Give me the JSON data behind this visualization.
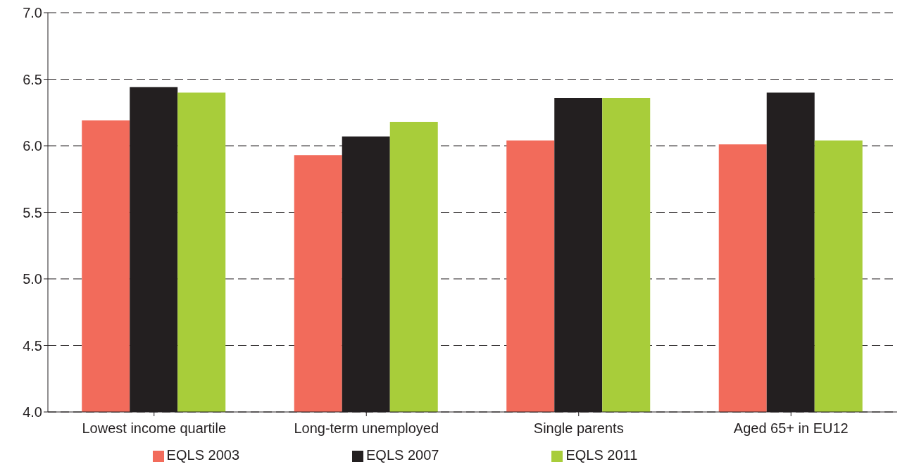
{
  "chart_data": {
    "type": "bar",
    "categories": [
      "Lowest income quartile",
      "Long-term unemployed",
      "Single parents",
      "Aged 65+ in EU12"
    ],
    "series": [
      {
        "name": "EQLS 2003",
        "color": "#f26b5b",
        "values": [
          6.19,
          5.93,
          6.04,
          6.01
        ]
      },
      {
        "name": "EQLS 2007",
        "color": "#231f20",
        "values": [
          6.44,
          6.07,
          6.36,
          6.4
        ]
      },
      {
        "name": "EQLS 2011",
        "color": "#a8cd3a",
        "values": [
          6.4,
          6.18,
          6.36,
          6.04
        ]
      }
    ],
    "ylim": [
      4,
      7
    ],
    "yticks": [
      {
        "value": 4,
        "label": "4.0"
      },
      {
        "value": 4.5,
        "label": "4.5"
      },
      {
        "value": 5,
        "label": "5.0"
      },
      {
        "value": 5.5,
        "label": "5.5"
      },
      {
        "value": 6,
        "label": "6.0"
      },
      {
        "value": 6.5,
        "label": "6.5"
      },
      {
        "value": 7,
        "label": "7.0"
      }
    ],
    "grid": "y",
    "legend": "bottom"
  }
}
